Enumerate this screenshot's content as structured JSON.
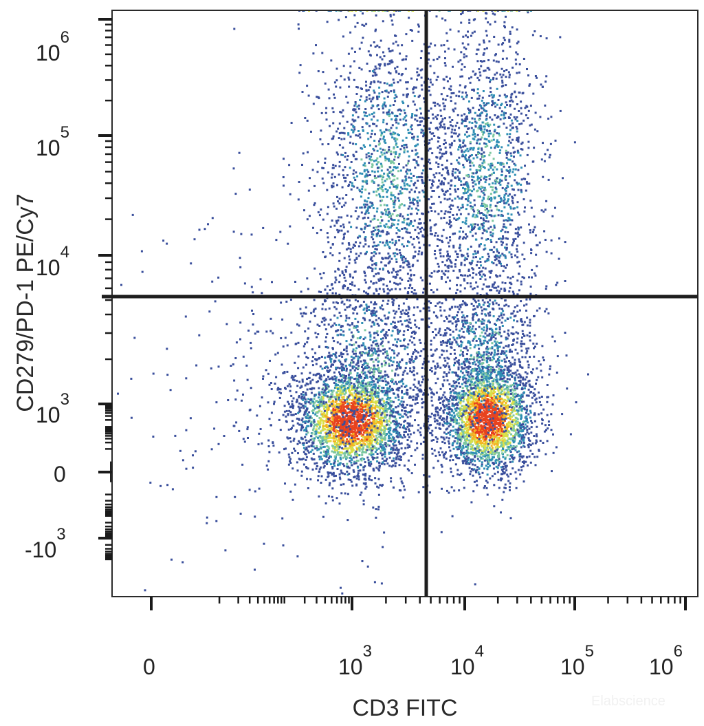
{
  "chart_data": {
    "type": "scatter",
    "subtype": "flow-cytometry-density-dot-plot",
    "xlabel": "CD3 FITC",
    "ylabel": "CD279/PD-1 PE/Cy7",
    "x_scale": "biexponential",
    "y_scale": "biexponential",
    "x_ticks": [
      {
        "base": "0",
        "exp": ""
      },
      {
        "base": "10",
        "exp": "3"
      },
      {
        "base": "10",
        "exp": "4"
      },
      {
        "base": "10",
        "exp": "5"
      },
      {
        "base": "10",
        "exp": "6"
      }
    ],
    "y_ticks": [
      {
        "base": "10",
        "exp": "6"
      },
      {
        "base": "10",
        "exp": "5"
      },
      {
        "base": "10",
        "exp": "4"
      },
      {
        "base": "10",
        "exp": "3"
      },
      {
        "base": "0",
        "exp": ""
      },
      {
        "base": "-10",
        "exp": "3"
      }
    ],
    "quadrant_gates": {
      "x": 4000,
      "y": 6500
    },
    "populations": [
      {
        "center": [
          900,
          800
        ],
        "description": "CD3- PD-1- dense cluster"
      },
      {
        "center": [
          15000,
          850
        ],
        "description": "CD3+ PD-1- dense cluster"
      },
      {
        "center": [
          1500,
          100000
        ],
        "description": "CD3- PD-1+ spread cluster"
      },
      {
        "center": [
          14000,
          90000
        ],
        "description": "CD3+ PD-1+ spread cluster"
      }
    ],
    "density_colors": [
      "#3a4f9c",
      "#2f8fb5",
      "#7cc7a0",
      "#d9e04a",
      "#f5b320",
      "#e8431f"
    ],
    "grid": false,
    "legend": "none"
  },
  "watermark": "Elabscience"
}
